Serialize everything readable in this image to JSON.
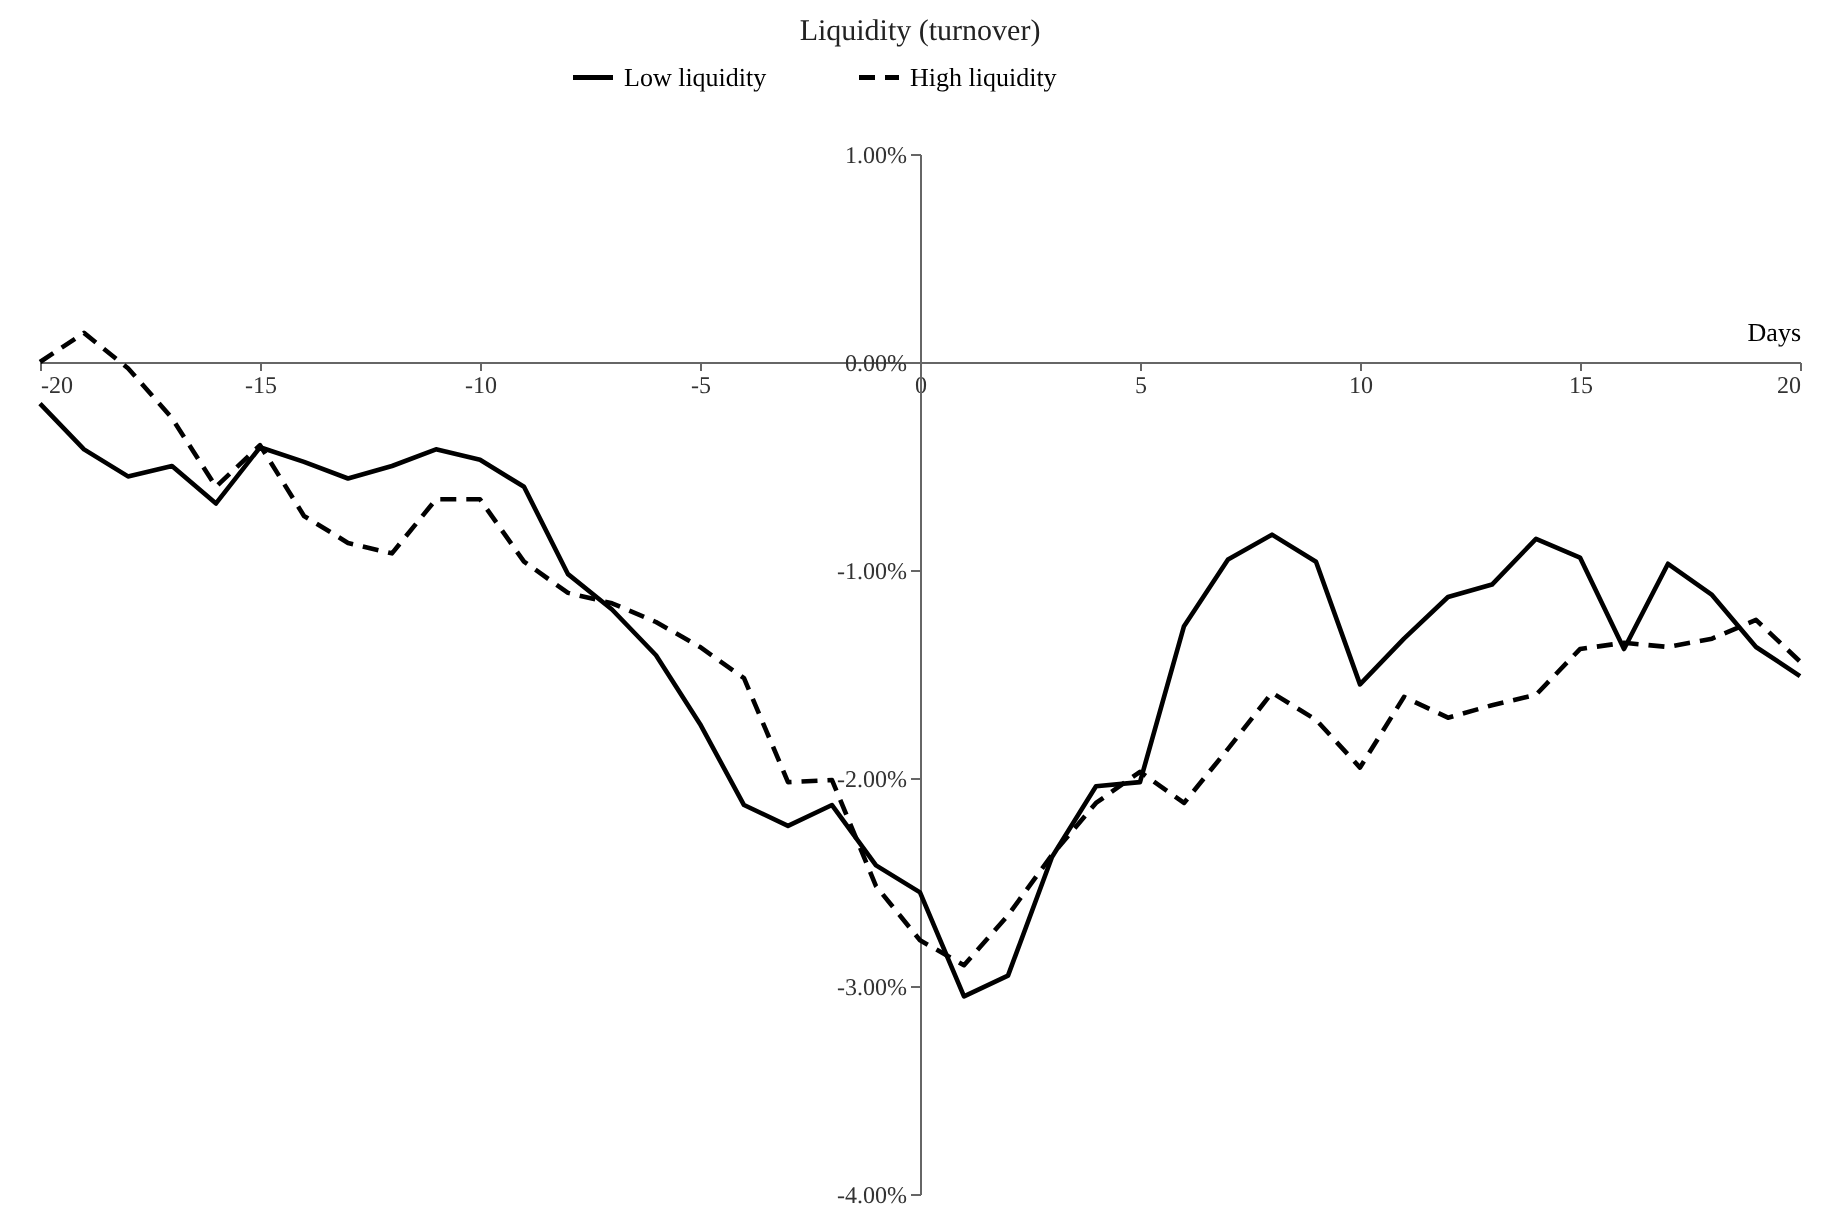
{
  "chart_data": {
    "type": "line",
    "title": "Liquidity (turnover)",
    "xlabel": "Days",
    "x": [
      -20,
      -19,
      -18,
      -17,
      -16,
      -15,
      -14,
      -13,
      -12,
      -11,
      -10,
      -9,
      -8,
      -7,
      -6,
      -5,
      -4,
      -3,
      -2,
      -1,
      0,
      1,
      2,
      3,
      4,
      5,
      6,
      7,
      8,
      9,
      10,
      11,
      12,
      13,
      14,
      15,
      16,
      17,
      18,
      19,
      20
    ],
    "series": [
      {
        "name": "Low liquidity",
        "color": "#000000",
        "line_style": "solid",
        "values": [
          -0.2,
          -0.42,
          -0.55,
          -0.5,
          -0.68,
          -0.41,
          -0.48,
          -0.56,
          -0.5,
          -0.42,
          -0.47,
          -0.6,
          -1.02,
          -1.19,
          -1.41,
          -1.74,
          -2.13,
          -2.23,
          -2.13,
          -2.42,
          -2.55,
          -3.05,
          -2.95,
          -2.38,
          -2.04,
          -2.02,
          -1.27,
          -0.95,
          -0.83,
          -0.96,
          -1.55,
          -1.33,
          -1.13,
          -1.07,
          -0.85,
          -0.94,
          -1.38,
          -0.97,
          -1.12,
          -1.37,
          -1.51
        ]
      },
      {
        "name": "High liquidity",
        "color": "#000000",
        "line_style": "dashed",
        "values": [
          0.0,
          0.14,
          -0.03,
          -0.27,
          -0.6,
          -0.4,
          -0.74,
          -0.87,
          -0.92,
          -0.66,
          -0.66,
          -0.96,
          -1.11,
          -1.16,
          -1.25,
          -1.37,
          -1.52,
          -2.02,
          -2.01,
          -2.52,
          -2.78,
          -2.9,
          -2.66,
          -2.37,
          -2.12,
          -1.97,
          -2.12,
          -1.86,
          -1.59,
          -1.72,
          -1.95,
          -1.61,
          -1.71,
          -1.65,
          -1.6,
          -1.38,
          -1.35,
          -1.37,
          -1.33,
          -1.24,
          -1.44
        ]
      }
    ],
    "xlim": [
      -20,
      20
    ],
    "xticks": [
      -20,
      -15,
      -10,
      -5,
      0,
      5,
      10,
      15,
      20
    ],
    "ylim": [
      -4,
      1
    ],
    "yticks": [
      {
        "value": 1,
        "label": "1.00%"
      },
      {
        "value": 0,
        "label": "0.00%"
      },
      {
        "value": -1,
        "label": "-1.00%"
      },
      {
        "value": -2,
        "label": "-2.00%"
      },
      {
        "value": -3,
        "label": "-3.00%"
      },
      {
        "value": -4,
        "label": "-4.00%"
      }
    ],
    "legend": "top"
  }
}
